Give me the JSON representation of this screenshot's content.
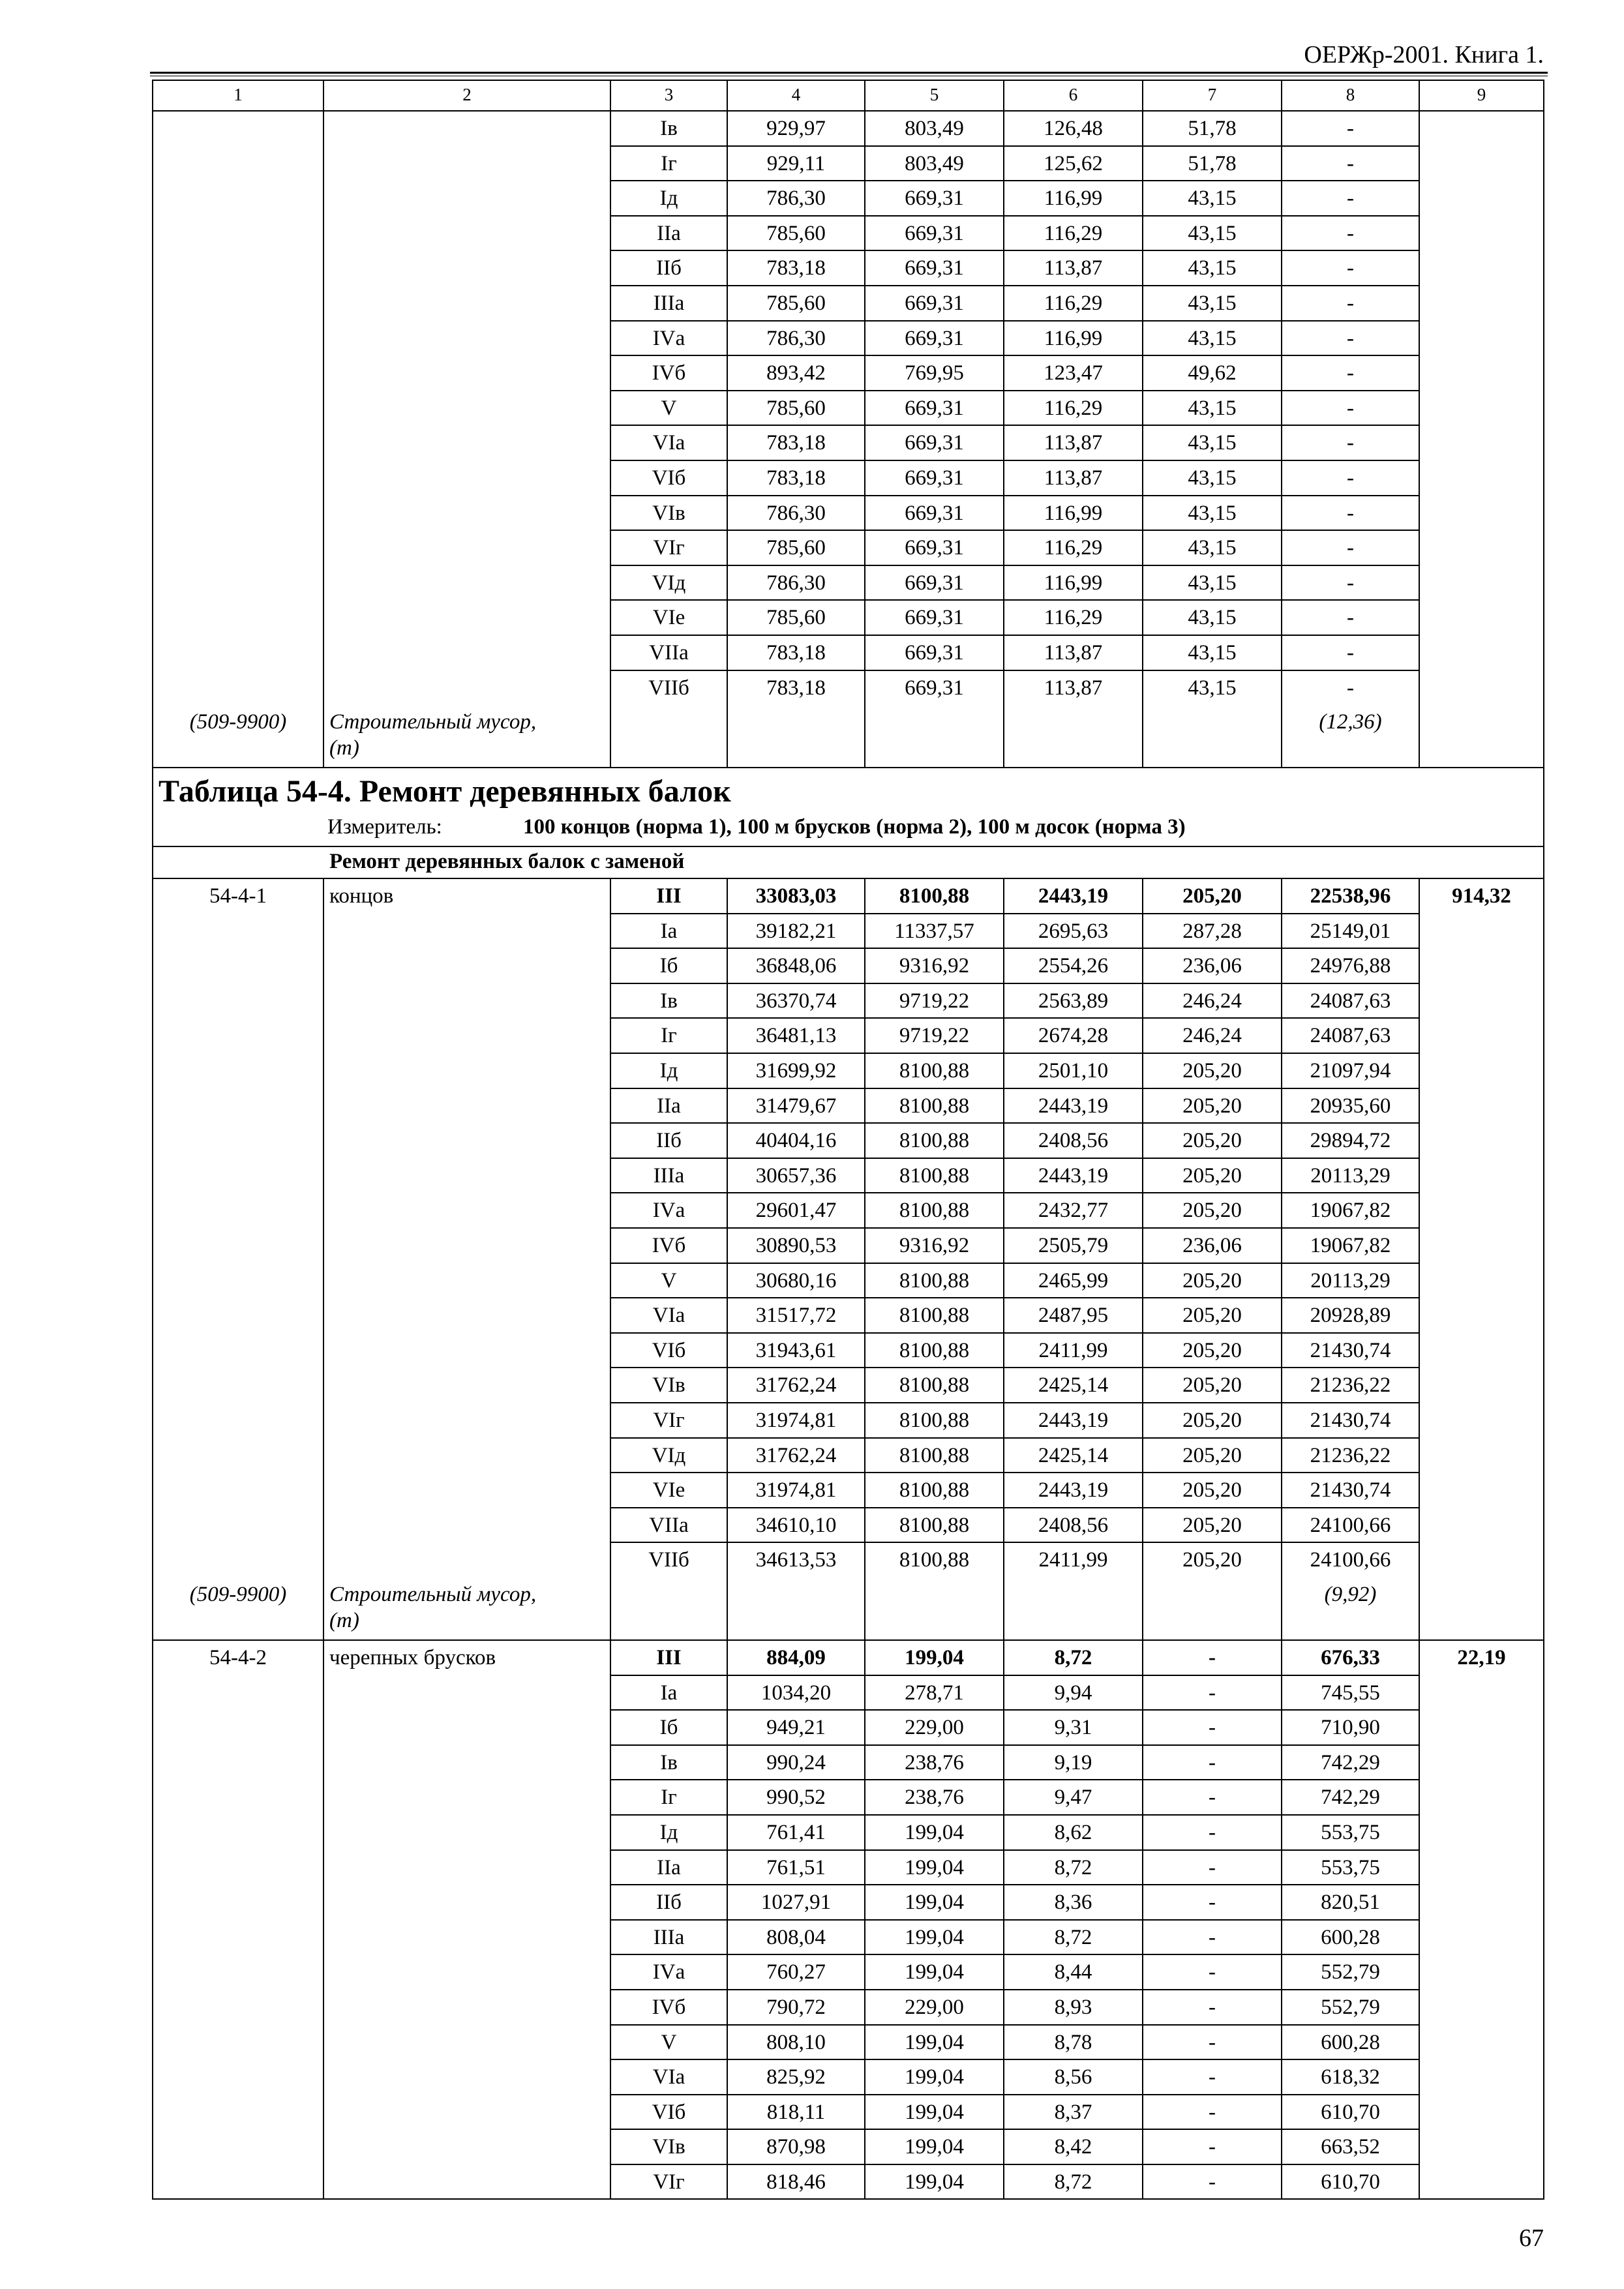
{
  "header": {
    "running_title": "ОЕРЖр-2001. Книга 1."
  },
  "table": {
    "column_numbers": [
      "1",
      "2",
      "3",
      "4",
      "5",
      "6",
      "7",
      "8",
      "9"
    ],
    "continuation": {
      "rows": [
        [
          "Iв",
          "929,97",
          "803,49",
          "126,48",
          "51,78",
          "-"
        ],
        [
          "Iг",
          "929,11",
          "803,49",
          "125,62",
          "51,78",
          "-"
        ],
        [
          "Iд",
          "786,30",
          "669,31",
          "116,99",
          "43,15",
          "-"
        ],
        [
          "IIа",
          "785,60",
          "669,31",
          "116,29",
          "43,15",
          "-"
        ],
        [
          "IIб",
          "783,18",
          "669,31",
          "113,87",
          "43,15",
          "-"
        ],
        [
          "IIIа",
          "785,60",
          "669,31",
          "116,29",
          "43,15",
          "-"
        ],
        [
          "IVа",
          "786,30",
          "669,31",
          "116,99",
          "43,15",
          "-"
        ],
        [
          "IVб",
          "893,42",
          "769,95",
          "123,47",
          "49,62",
          "-"
        ],
        [
          "V",
          "785,60",
          "669,31",
          "116,29",
          "43,15",
          "-"
        ],
        [
          "VIа",
          "783,18",
          "669,31",
          "113,87",
          "43,15",
          "-"
        ],
        [
          "VIб",
          "783,18",
          "669,31",
          "113,87",
          "43,15",
          "-"
        ],
        [
          "VIв",
          "786,30",
          "669,31",
          "116,99",
          "43,15",
          "-"
        ],
        [
          "VIг",
          "785,60",
          "669,31",
          "116,29",
          "43,15",
          "-"
        ],
        [
          "VIд",
          "786,30",
          "669,31",
          "116,99",
          "43,15",
          "-"
        ],
        [
          "VIе",
          "785,60",
          "669,31",
          "116,29",
          "43,15",
          "-"
        ],
        [
          "VIIа",
          "783,18",
          "669,31",
          "113,87",
          "43,15",
          "-"
        ],
        [
          "VIIб",
          "783,18",
          "669,31",
          "113,87",
          "43,15",
          "-"
        ]
      ],
      "debris": {
        "code": "(509-9900)",
        "name": [
          "Строительный мусор,",
          "(т)"
        ],
        "value": "(12,36)"
      }
    },
    "table_title": "Таблица 54-4. Ремонт деревянных балок",
    "meter": {
      "label": "Измеритель:",
      "text": "100 концов (норма 1), 100 м брусков (норма 2), 100 м досок (норма 3)"
    },
    "subheader": "Ремонт деревянных балок с заменой",
    "items": [
      {
        "code": "54-4-1",
        "name": "концов",
        "col9": "914,32",
        "rows": [
          [
            "III",
            "33083,03",
            "8100,88",
            "2443,19",
            "205,20",
            "22538,96"
          ],
          [
            "Iа",
            "39182,21",
            "11337,57",
            "2695,63",
            "287,28",
            "25149,01"
          ],
          [
            "Iб",
            "36848,06",
            "9316,92",
            "2554,26",
            "236,06",
            "24976,88"
          ],
          [
            "Iв",
            "36370,74",
            "9719,22",
            "2563,89",
            "246,24",
            "24087,63"
          ],
          [
            "Iг",
            "36481,13",
            "9719,22",
            "2674,28",
            "246,24",
            "24087,63"
          ],
          [
            "Iд",
            "31699,92",
            "8100,88",
            "2501,10",
            "205,20",
            "21097,94"
          ],
          [
            "IIа",
            "31479,67",
            "8100,88",
            "2443,19",
            "205,20",
            "20935,60"
          ],
          [
            "IIб",
            "40404,16",
            "8100,88",
            "2408,56",
            "205,20",
            "29894,72"
          ],
          [
            "IIIа",
            "30657,36",
            "8100,88",
            "2443,19",
            "205,20",
            "20113,29"
          ],
          [
            "IVа",
            "29601,47",
            "8100,88",
            "2432,77",
            "205,20",
            "19067,82"
          ],
          [
            "IVб",
            "30890,53",
            "9316,92",
            "2505,79",
            "236,06",
            "19067,82"
          ],
          [
            "V",
            "30680,16",
            "8100,88",
            "2465,99",
            "205,20",
            "20113,29"
          ],
          [
            "VIа",
            "31517,72",
            "8100,88",
            "2487,95",
            "205,20",
            "20928,89"
          ],
          [
            "VIб",
            "31943,61",
            "8100,88",
            "2411,99",
            "205,20",
            "21430,74"
          ],
          [
            "VIв",
            "31762,24",
            "8100,88",
            "2425,14",
            "205,20",
            "21236,22"
          ],
          [
            "VIг",
            "31974,81",
            "8100,88",
            "2443,19",
            "205,20",
            "21430,74"
          ],
          [
            "VIд",
            "31762,24",
            "8100,88",
            "2425,14",
            "205,20",
            "21236,22"
          ],
          [
            "VIе",
            "31974,81",
            "8100,88",
            "2443,19",
            "205,20",
            "21430,74"
          ],
          [
            "VIIа",
            "34610,10",
            "8100,88",
            "2408,56",
            "205,20",
            "24100,66"
          ],
          [
            "VIIб",
            "34613,53",
            "8100,88",
            "2411,99",
            "205,20",
            "24100,66"
          ]
        ],
        "debris": {
          "code": "(509-9900)",
          "name": [
            "Строительный мусор,",
            "(т)"
          ],
          "value": "(9,92)"
        }
      },
      {
        "code": "54-4-2",
        "name": "черепных брусков",
        "col9": "22,19",
        "rows": [
          [
            "III",
            "884,09",
            "199,04",
            "8,72",
            "-",
            "676,33"
          ],
          [
            "Iа",
            "1034,20",
            "278,71",
            "9,94",
            "-",
            "745,55"
          ],
          [
            "Iб",
            "949,21",
            "229,00",
            "9,31",
            "-",
            "710,90"
          ],
          [
            "Iв",
            "990,24",
            "238,76",
            "9,19",
            "-",
            "742,29"
          ],
          [
            "Iг",
            "990,52",
            "238,76",
            "9,47",
            "-",
            "742,29"
          ],
          [
            "Iд",
            "761,41",
            "199,04",
            "8,62",
            "-",
            "553,75"
          ],
          [
            "IIа",
            "761,51",
            "199,04",
            "8,72",
            "-",
            "553,75"
          ],
          [
            "IIб",
            "1027,91",
            "199,04",
            "8,36",
            "-",
            "820,51"
          ],
          [
            "IIIа",
            "808,04",
            "199,04",
            "8,72",
            "-",
            "600,28"
          ],
          [
            "IVа",
            "760,27",
            "199,04",
            "8,44",
            "-",
            "552,79"
          ],
          [
            "IVб",
            "790,72",
            "229,00",
            "8,93",
            "-",
            "552,79"
          ],
          [
            "V",
            "808,10",
            "199,04",
            "8,78",
            "-",
            "600,28"
          ],
          [
            "VIа",
            "825,92",
            "199,04",
            "8,56",
            "-",
            "618,32"
          ],
          [
            "VIб",
            "818,11",
            "199,04",
            "8,37",
            "-",
            "610,70"
          ],
          [
            "VIв",
            "870,98",
            "199,04",
            "8,42",
            "-",
            "663,52"
          ],
          [
            "VIг",
            "818,46",
            "199,04",
            "8,72",
            "-",
            "610,70"
          ]
        ]
      }
    ]
  },
  "page_number": "67"
}
